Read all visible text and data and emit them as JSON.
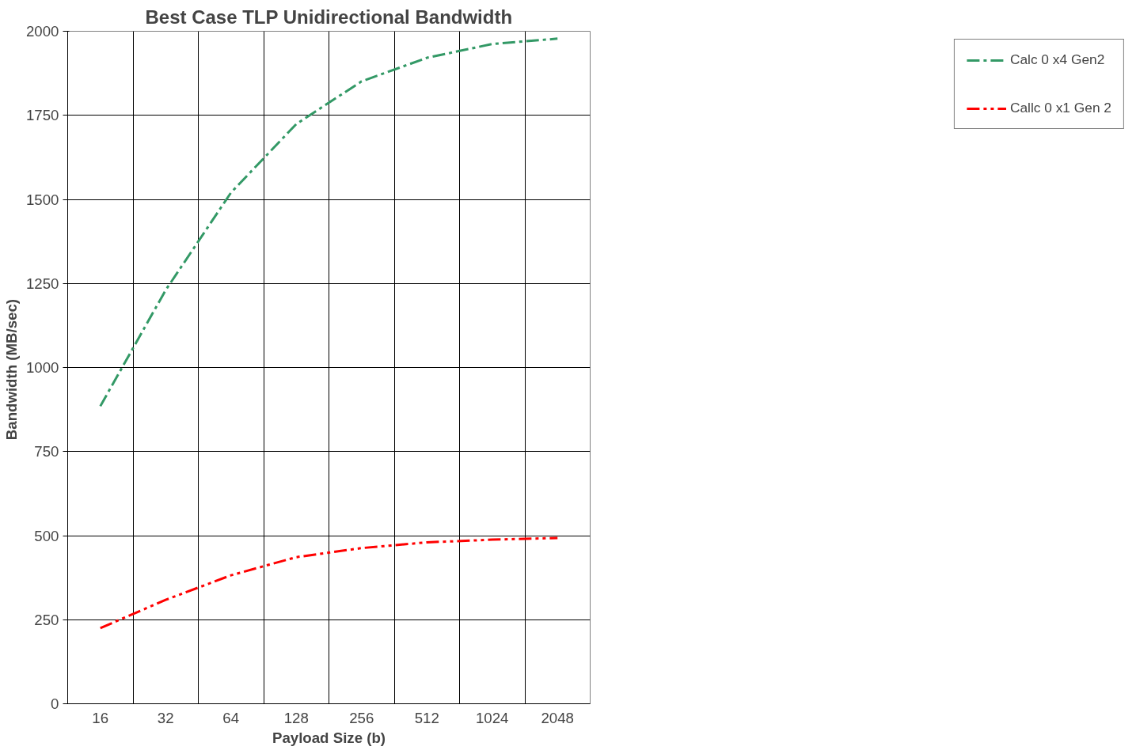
{
  "chart_data": {
    "type": "line",
    "title": "Best Case TLP Unidirectional Bandwidth",
    "xlabel": "Payload Size (b)",
    "ylabel": "Bandwidth  (MB/sec)",
    "categories": [
      "16",
      "32",
      "64",
      "128",
      "256",
      "512",
      "1024",
      "2048"
    ],
    "series": [
      {
        "name": "Calc 0 x4 Gen2",
        "color": "#339966",
        "values": [
          885,
          1230,
          1520,
          1724,
          1851,
          1921,
          1962,
          1978
        ]
      },
      {
        "name": "Callc 0 x1 Gen 2",
        "color": "#ff0000",
        "values": [
          225,
          309,
          382,
          436,
          463,
          480,
          488,
          493
        ]
      }
    ],
    "ylim": [
      0,
      2000
    ],
    "yticks": [
      0,
      250,
      500,
      750,
      1000,
      1250,
      1500,
      1750,
      2000
    ],
    "grid": true,
    "legend": "right",
    "line_style": "dashed",
    "marker": "none"
  }
}
